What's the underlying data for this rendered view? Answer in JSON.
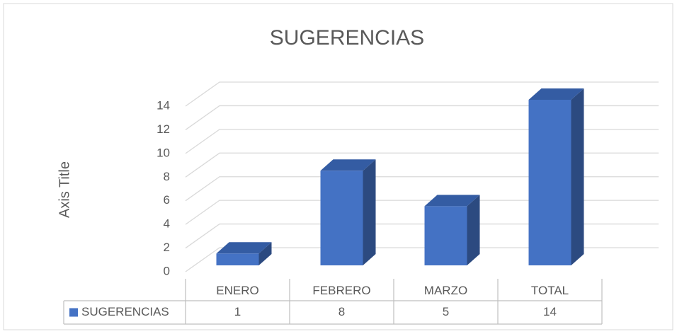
{
  "chart_data": {
    "type": "bar3d",
    "title": "SUGERENCIAS",
    "y_label": "Axis Title",
    "categories": [
      "ENERO",
      "FEBRERO",
      "MARZO",
      "TOTAL"
    ],
    "series": [
      {
        "name": "SUGERENCIAS",
        "color": "#4472c4",
        "values": [
          1,
          8,
          5,
          14
        ]
      }
    ],
    "ylim": [
      0,
      14
    ],
    "yticks": [
      0,
      2,
      4,
      6,
      8,
      10,
      12,
      14
    ],
    "grid": true,
    "data_table": true
  }
}
